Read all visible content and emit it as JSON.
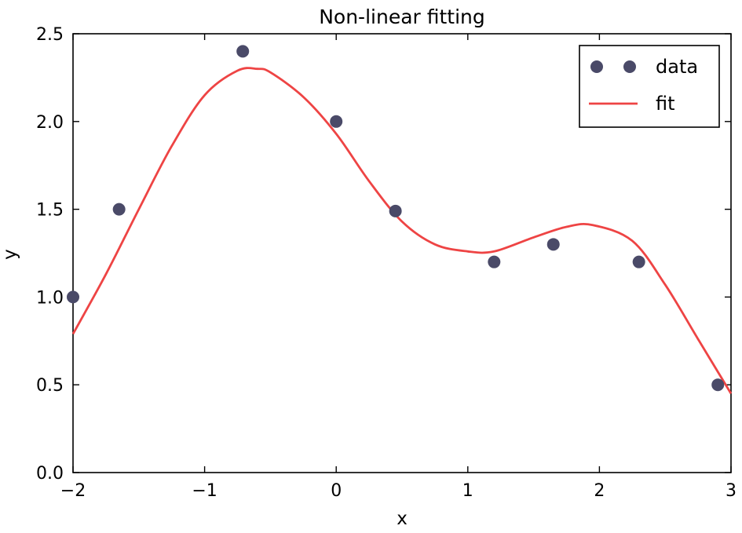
{
  "chart_data": {
    "type": "scatter",
    "title": "Non-linear fitting",
    "xlabel": "x",
    "ylabel": "y",
    "xlim": [
      -2,
      3
    ],
    "ylim": [
      0,
      2.5
    ],
    "xticks": [
      -2,
      -1,
      0,
      1,
      2,
      3
    ],
    "xtick_labels": [
      "−2",
      "−1",
      "0",
      "1",
      "2",
      "3"
    ],
    "yticks": [
      0,
      0.5,
      1,
      1.5,
      2,
      2.5
    ],
    "ytick_labels": [
      "0.0",
      "0.5",
      "1.0",
      "1.5",
      "2.0",
      "2.5"
    ],
    "grid": false,
    "legend_position": "top-right",
    "series": [
      {
        "name": "data",
        "kind": "markers",
        "color": "#4a4a68",
        "x": [
          -2.0,
          -1.65,
          -0.71,
          0.0,
          0.45,
          1.2,
          1.65,
          2.3,
          2.9
        ],
        "y": [
          1.0,
          1.5,
          2.4,
          2.0,
          1.49,
          1.2,
          1.3,
          1.2,
          0.5
        ]
      },
      {
        "name": "fit",
        "kind": "line",
        "color": "#ee4444",
        "x": [
          -2.0,
          -1.75,
          -1.5,
          -1.25,
          -1.0,
          -0.75,
          -0.6,
          -0.5,
          -0.25,
          0.0,
          0.25,
          0.5,
          0.75,
          1.0,
          1.2,
          1.5,
          1.75,
          1.95,
          2.25,
          2.5,
          2.75,
          3.0
        ],
        "y": [
          0.79,
          1.13,
          1.5,
          1.86,
          2.15,
          2.29,
          2.3,
          2.28,
          2.14,
          1.93,
          1.66,
          1.43,
          1.3,
          1.26,
          1.26,
          1.34,
          1.4,
          1.41,
          1.32,
          1.07,
          0.76,
          0.45
        ]
      }
    ]
  }
}
